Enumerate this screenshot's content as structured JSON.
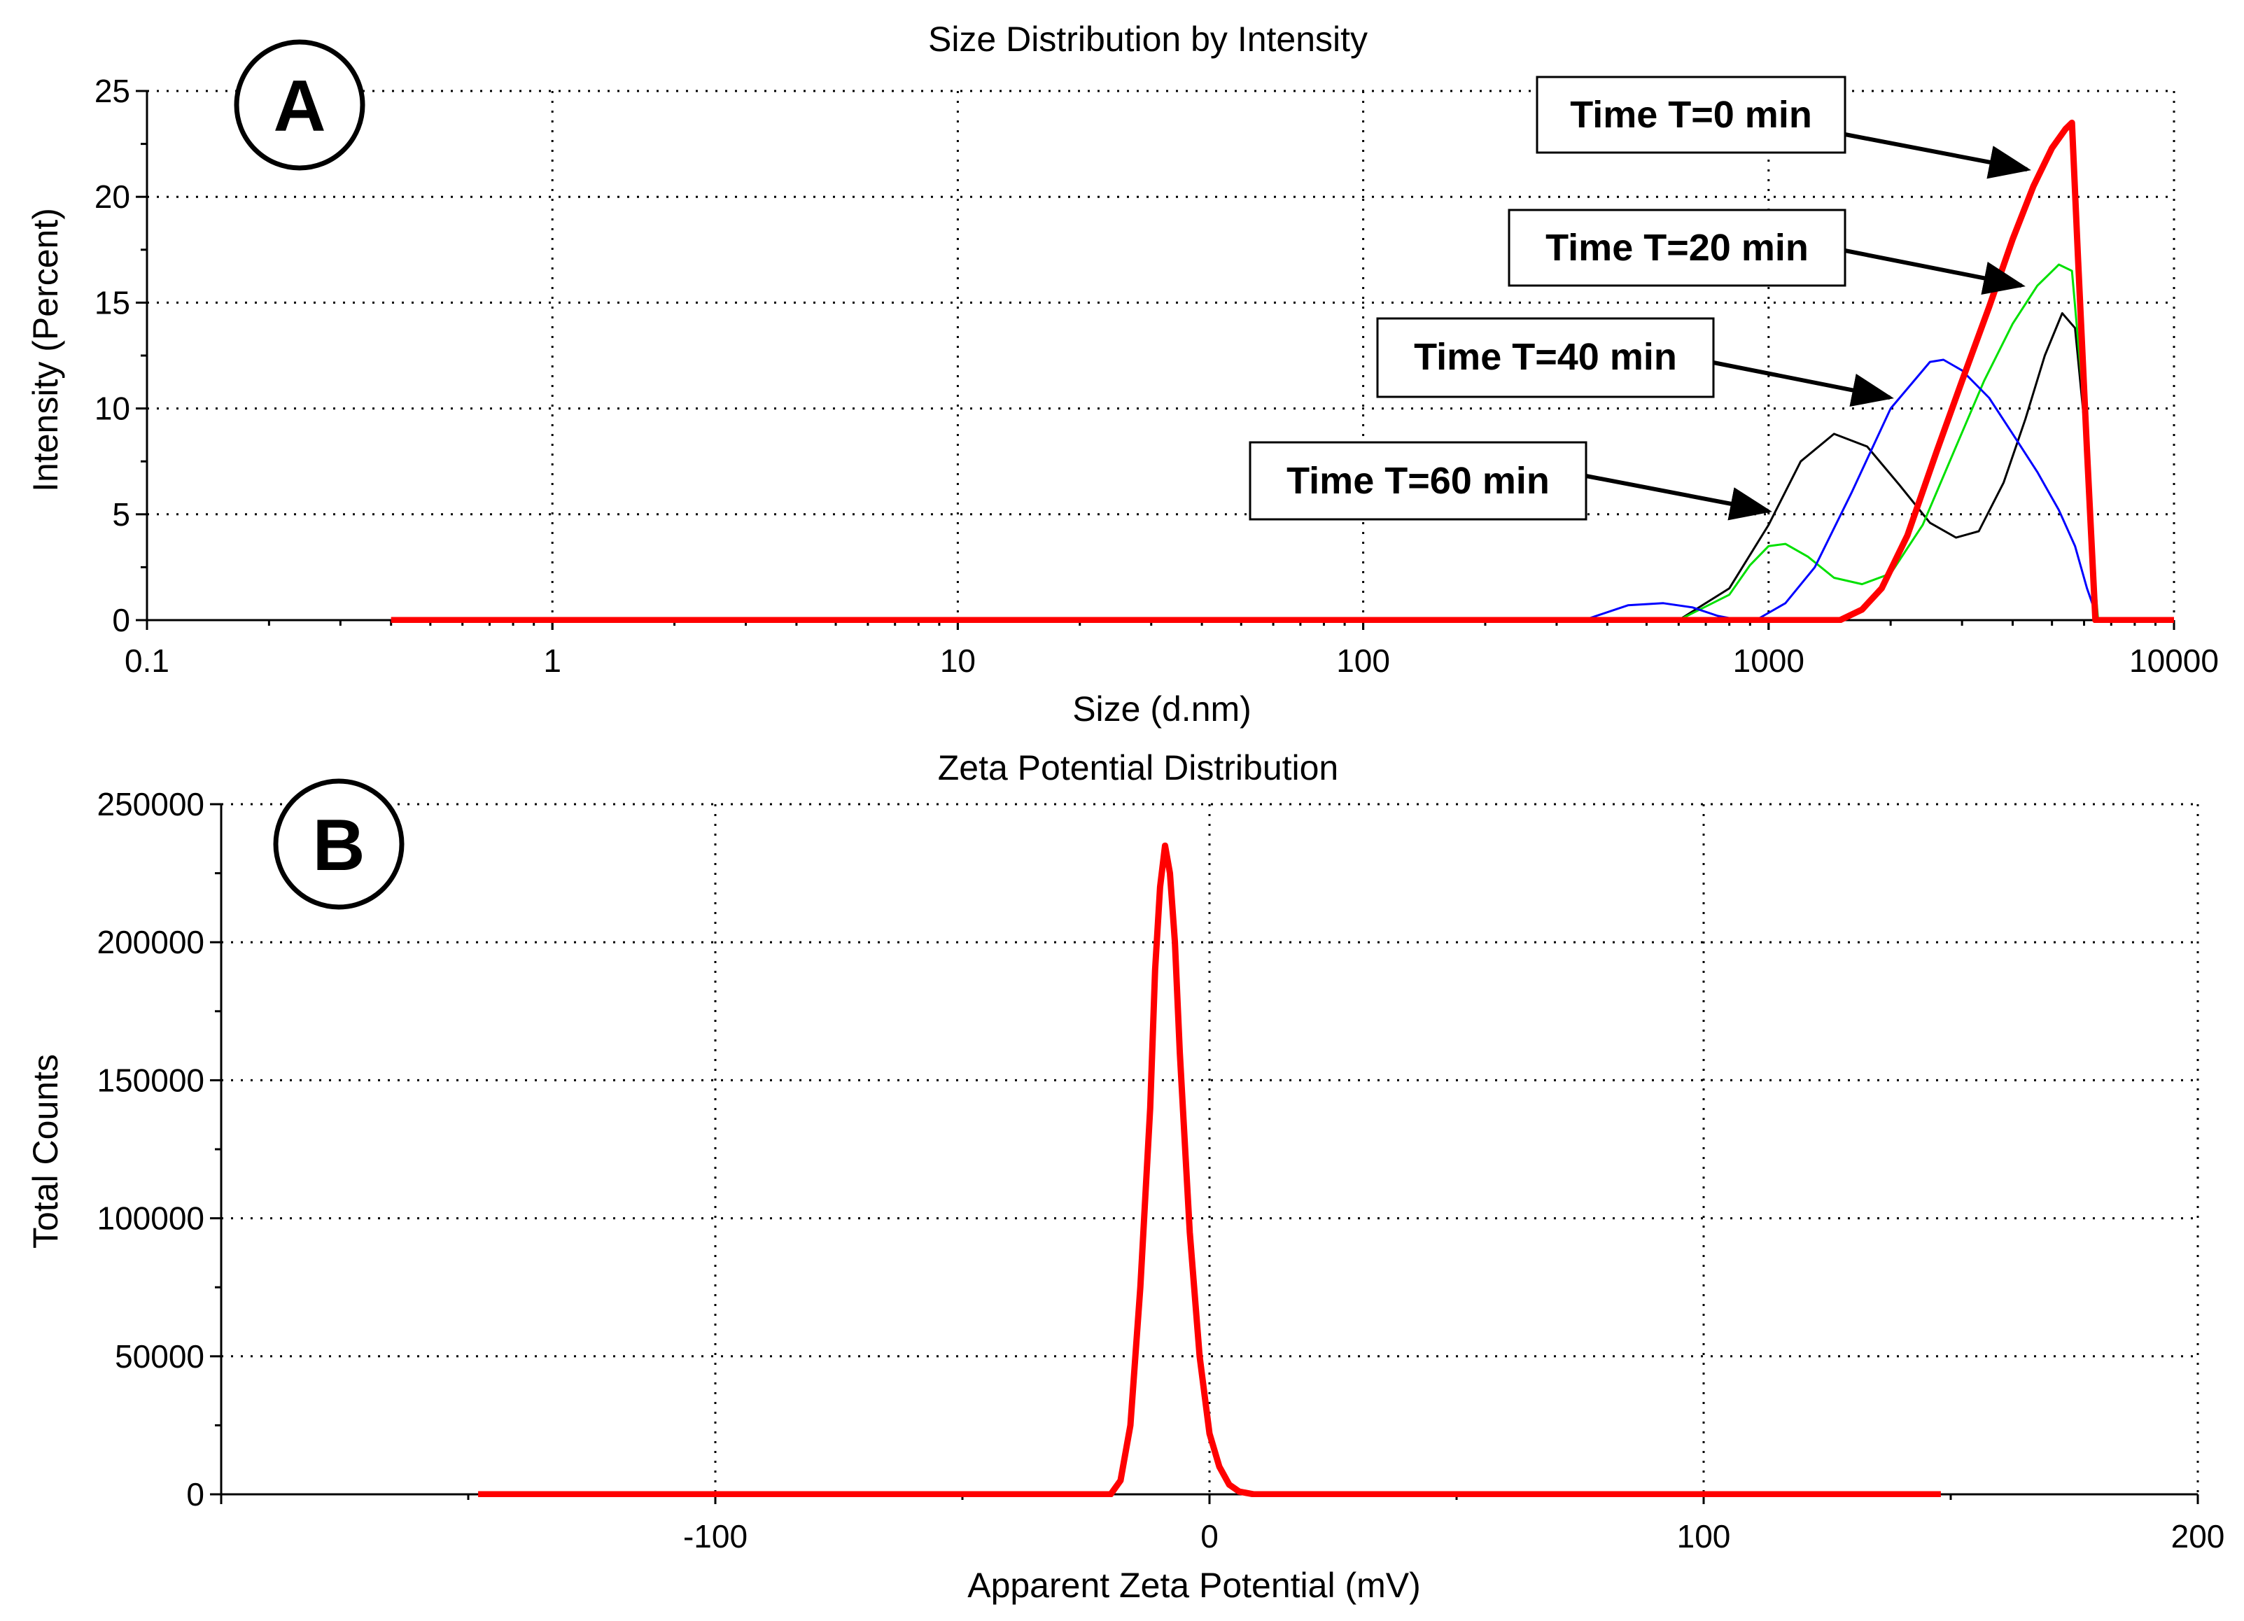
{
  "chart_data": [
    {
      "type": "line",
      "panel_label": "A",
      "title": "Size Distribution by Intensity",
      "xlabel": "Size (d.nm)",
      "ylabel": "Intensity (Percent)",
      "xscale": "log",
      "xlim": [
        0.1,
        10000
      ],
      "ylim": [
        0,
        25
      ],
      "grid": true,
      "xtick_labels": [
        "0.1",
        "1",
        "10",
        "100",
        "1000",
        "10000"
      ],
      "ytick_labels": [
        "0",
        "5",
        "10",
        "15",
        "20",
        "25"
      ],
      "series": [
        {
          "name": "Time T=60 min",
          "color": "#000000",
          "x": [
            0.4,
            400,
            600,
            800,
            1000,
            1200,
            1450,
            1750,
            2100,
            2500,
            2900,
            3300,
            3800,
            4300,
            4800,
            5300,
            5700,
            6100,
            6400,
            10000
          ],
          "y": [
            0,
            0,
            0,
            1.5,
            4.5,
            7.5,
            8.8,
            8.2,
            6.4,
            4.6,
            3.9,
            4.2,
            6.5,
            9.5,
            12.5,
            14.5,
            13.8,
            8.0,
            0,
            0
          ]
        },
        {
          "name": "Time T=20 min",
          "color": "#00e000",
          "x": [
            0.4,
            600,
            800,
            900,
            1000,
            1100,
            1250,
            1450,
            1700,
            2000,
            2400,
            2900,
            3400,
            4000,
            4600,
            5200,
            5600,
            6000,
            6300,
            6500,
            10000
          ],
          "y": [
            0,
            0,
            1.2,
            2.6,
            3.5,
            3.6,
            3.0,
            2.0,
            1.7,
            2.2,
            4.5,
            8.2,
            11.3,
            14.0,
            15.8,
            16.8,
            16.5,
            10.0,
            3.0,
            0,
            0
          ]
        },
        {
          "name": "Time T=40 min",
          "color": "#0000ff",
          "x": [
            0.4,
            350,
            450,
            550,
            650,
            750,
            850,
            950,
            1100,
            1300,
            1600,
            2000,
            2500,
            2700,
            3000,
            3500,
            4000,
            4600,
            5200,
            5700,
            6100,
            6500,
            10000
          ],
          "y": [
            0,
            0,
            0.7,
            0.8,
            0.6,
            0.2,
            0,
            0.1,
            0.8,
            2.5,
            6.0,
            10.0,
            12.2,
            12.3,
            11.8,
            10.5,
            8.8,
            7.0,
            5.2,
            3.5,
            1.5,
            0,
            0
          ]
        },
        {
          "name": "Time T=0 min",
          "color": "#ff0000",
          "x": [
            0.4,
            1500,
            1700,
            1900,
            2200,
            2600,
            3000,
            3500,
            4000,
            4500,
            5000,
            5400,
            5600,
            5800,
            6100,
            6400,
            10000
          ],
          "y": [
            0,
            0,
            0.5,
            1.5,
            4.0,
            8.0,
            11.3,
            14.8,
            18.0,
            20.5,
            22.3,
            23.2,
            23.5,
            17.0,
            8.0,
            0,
            0
          ]
        }
      ],
      "annotations": [
        {
          "text": "Time T=0 min",
          "target_series": "Time T=0 min"
        },
        {
          "text": "Time T=20 min",
          "target_series": "Time T=20 min"
        },
        {
          "text": "Time T=40 min",
          "target_series": "Time T=40 min"
        },
        {
          "text": "Time T=60 min",
          "target_series": "Time T=60 min"
        }
      ]
    },
    {
      "type": "line",
      "panel_label": "B",
      "title": "Zeta Potential Distribution",
      "xlabel": "Apparent Zeta Potential (mV)",
      "ylabel": "Total Counts",
      "xlim": [
        -200,
        200
      ],
      "ylim": [
        0,
        250000
      ],
      "grid": true,
      "xtick_labels": [
        "-100",
        "0",
        "100",
        "200"
      ],
      "ytick_labels": [
        "0",
        "50000",
        "100000",
        "150000",
        "200000",
        "250000"
      ],
      "series": [
        {
          "name": "Zeta potential",
          "color": "#ff0000",
          "x": [
            -148,
            -20,
            -18,
            -16,
            -14,
            -12,
            -11,
            -10,
            -9,
            -8,
            -7,
            -6,
            -4,
            -2,
            0,
            2,
            4,
            6,
            9,
            148
          ],
          "y": [
            0,
            0,
            5000,
            25000,
            75000,
            140000,
            190000,
            220000,
            235000,
            225000,
            200000,
            160000,
            95000,
            50000,
            22000,
            10000,
            3500,
            1000,
            0,
            0
          ]
        }
      ]
    }
  ]
}
